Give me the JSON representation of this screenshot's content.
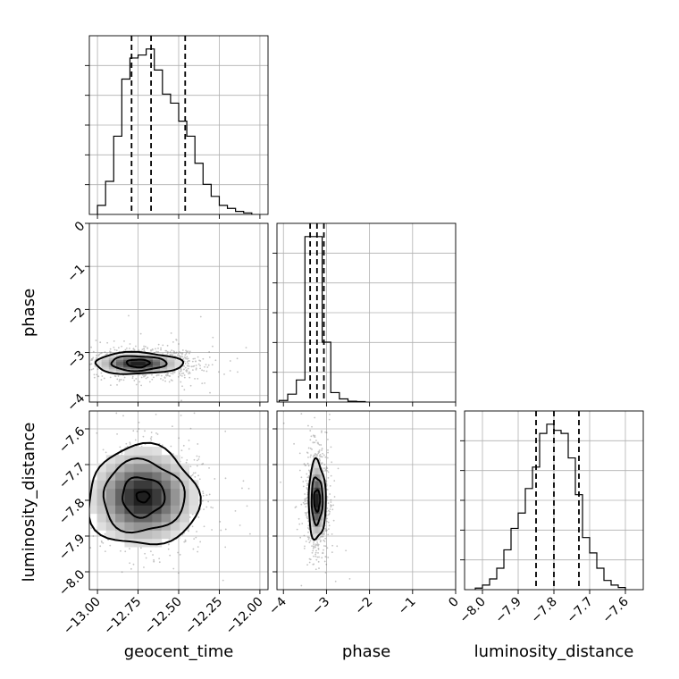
{
  "chart_data": {
    "type": "corner",
    "parameters": [
      "geocent_time",
      "phase",
      "luminosity_distance"
    ],
    "ranges": {
      "geocent_time": [
        -13.05,
        -11.95
      ],
      "phase": [
        -4.15,
        0.0
      ],
      "luminosity_distance": [
        -8.05,
        -7.55
      ]
    },
    "ticks": {
      "geocent_time": [
        -13.0,
        -12.75,
        -12.5,
        -12.25,
        -12.0
      ],
      "phase": [
        -4,
        -3,
        -2,
        -1,
        0
      ],
      "luminosity_distance": [
        -8.0,
        -7.9,
        -7.8,
        -7.7,
        -7.6
      ]
    },
    "tick_labels": {
      "geocent_time": [
        "−13.00",
        "−12.75",
        "−12.50",
        "−12.25",
        "−12.00"
      ],
      "phase": [
        "−4",
        "−3",
        "−2",
        "−1",
        "0"
      ],
      "luminosity_distance": [
        "−8.0",
        "−7.9",
        "−7.8",
        "−7.7",
        "−7.6"
      ]
    },
    "histograms": {
      "geocent_time": {
        "bin_edges": [
          -13.0,
          -12.95,
          -12.9,
          -12.85,
          -12.8,
          -12.75,
          -12.7,
          -12.65,
          -12.6,
          -12.55,
          -12.5,
          -12.45,
          -12.4,
          -12.35,
          -12.3,
          -12.25,
          -12.2,
          -12.15,
          -12.1,
          -12.05
        ],
        "counts": [
          3,
          11,
          26,
          45,
          52,
          53,
          55,
          48,
          40,
          37,
          31,
          26,
          17,
          10,
          6,
          3,
          2,
          1,
          0.5
        ]
      },
      "phase": {
        "bin_edges": [
          -4.1,
          -3.9,
          -3.7,
          -3.5,
          -3.3,
          -3.1,
          -2.9,
          -2.7,
          -2.5,
          -2.3,
          -2.1
        ],
        "counts": [
          1,
          5,
          14,
          105,
          105,
          38,
          6,
          2,
          0.5,
          0.3
        ]
      },
      "luminosity_distance": {
        "bin_edges": [
          -8.02,
          -8.0,
          -7.98,
          -7.96,
          -7.94,
          -7.92,
          -7.9,
          -7.88,
          -7.86,
          -7.84,
          -7.82,
          -7.8,
          -7.78,
          -7.76,
          -7.74,
          -7.72,
          -7.7,
          -7.68,
          -7.66,
          -7.64,
          -7.62,
          -7.6
        ],
        "counts": [
          0.5,
          1.5,
          3.5,
          7,
          13,
          20,
          25,
          33,
          40,
          51,
          54,
          52,
          51,
          43,
          31,
          17,
          12,
          7,
          3,
          1.5,
          0.7
        ]
      }
    },
    "quantiles": {
      "geocent_time": [
        -12.79,
        -12.67,
        -12.46
      ],
      "phase": [
        -3.38,
        -3.22,
        -3.06
      ],
      "luminosity_distance": [
        -7.85,
        -7.8,
        -7.73
      ]
    },
    "contours_2d": {
      "phase_vs_geocent_time": {
        "x": "geocent_time",
        "y": "phase",
        "center": [
          -12.75,
          -3.25
        ],
        "levels": [
          {
            "rx": 0.07,
            "ry": 0.09
          },
          {
            "rx": 0.17,
            "ry": 0.17
          },
          {
            "rx": 0.27,
            "ry": 0.25
          }
        ]
      },
      "luminosity_distance_vs_geocent_time": {
        "x": "geocent_time",
        "y": "luminosity_distance",
        "center": [
          -12.72,
          -7.79
        ],
        "levels": [
          {
            "rx": 0.04,
            "ry": 0.015
          },
          {
            "rx": 0.13,
            "ry": 0.055
          },
          {
            "rx": 0.25,
            "ry": 0.1
          },
          {
            "rx": 0.34,
            "ry": 0.14
          }
        ]
      },
      "luminosity_distance_vs_phase": {
        "x": "phase",
        "y": "luminosity_distance",
        "center": [
          -3.22,
          -7.8
        ],
        "levels": [
          {
            "rx": 0.07,
            "ry": 0.03
          },
          {
            "rx": 0.13,
            "ry": 0.065
          },
          {
            "rx": 0.2,
            "ry": 0.11
          }
        ]
      }
    },
    "scatter_spread": {
      "phase_vs_geocent_time": {
        "cx": -12.7,
        "cy": -3.25,
        "sx": 0.16,
        "sy": 0.18,
        "n": 900
      },
      "luminosity_distance_vs_geocent_time": {
        "cx": -12.68,
        "cy": -7.79,
        "sx": 0.16,
        "sy": 0.07,
        "n": 1100
      },
      "luminosity_distance_vs_phase": {
        "cx": -3.22,
        "cy": -7.8,
        "sx": 0.13,
        "sy": 0.07,
        "n": 900
      }
    }
  }
}
